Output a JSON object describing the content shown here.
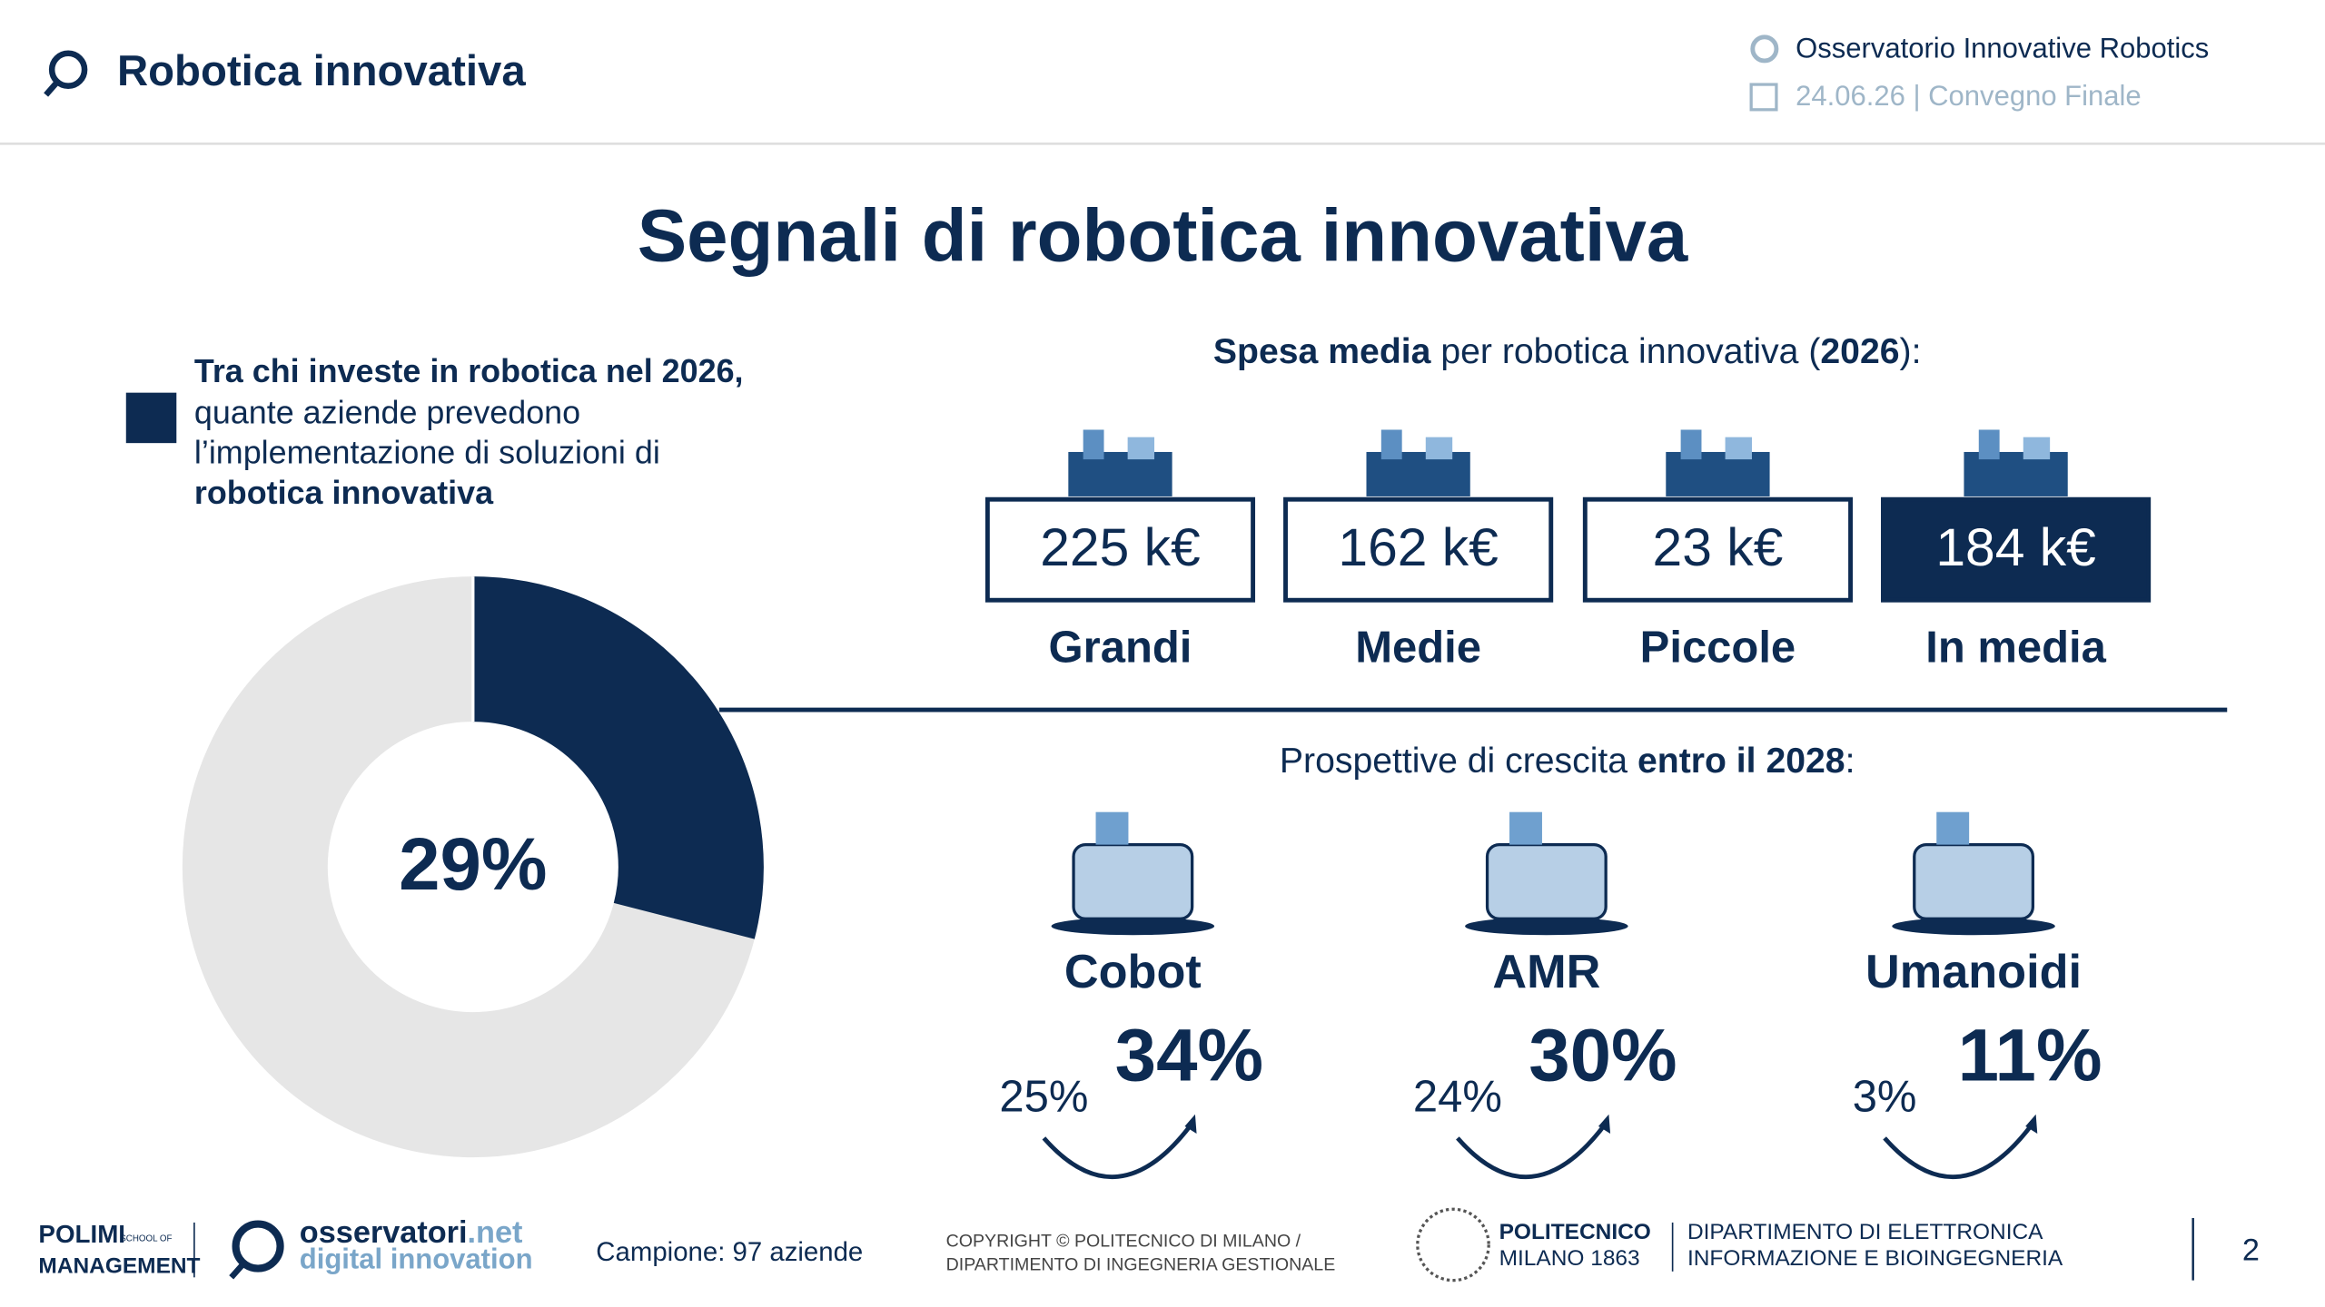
{
  "header": {
    "title": "Robotica innovativa",
    "observatory": "Osservatorio Innovative Robotics",
    "event": "24.06.26 | Convegno Finale"
  },
  "main_title": "Segnali di robotica innovativa",
  "question": [
    "Tra chi investe in robotica nel 2026,",
    "quante aziende prevedono",
    "l’implementazione di soluzioni di",
    "robotica innovativa"
  ],
  "donut": {
    "value": 29,
    "label": "29%"
  },
  "spending": {
    "title": [
      "Spesa media",
      " per robotica innovativa (",
      "2026",
      "):"
    ],
    "items": [
      {
        "value": "225 k€",
        "label": "Grandi"
      },
      {
        "value": "162 k€",
        "label": "Medie"
      },
      {
        "value": "23 k€",
        "label": "Piccole"
      },
      {
        "value": "184 k€",
        "label": "In media"
      }
    ]
  },
  "growth": {
    "title": [
      "Prospettive di crescita ",
      "entro il 2028",
      ":"
    ],
    "items": [
      {
        "label": "Cobot",
        "from": "25%",
        "to": "34%"
      },
      {
        "label": "AMR",
        "from": "24%",
        "to": "30%"
      },
      {
        "label": "Umanoidi",
        "from": "3%",
        "to": "11%"
      }
    ]
  },
  "footer": {
    "polimi": [
      "POLIMI",
      "SCHOOL OF",
      "MANAGEMENT"
    ],
    "osservatori": [
      "osservatori",
      ".net",
      "digital innovation"
    ],
    "sample": "Campione: 97 aziende",
    "copyright": [
      "COPYRIGHT © POLITECNICO DI MILANO /",
      "DIPARTIMENTO DI INGEGNERIA GESTIONALE"
    ],
    "politecnico": [
      "POLITECNICO",
      "MILANO 1863"
    ],
    "department": [
      "DIPARTIMENTO DI ELETTRONICA",
      "INFORMAZIONE E BIOINGEGNERIA"
    ],
    "page": "2"
  }
}
